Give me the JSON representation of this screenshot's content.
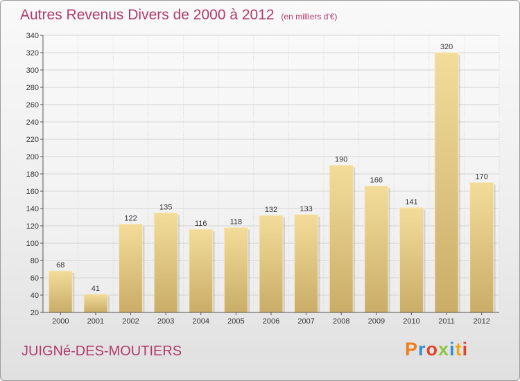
{
  "header": {
    "title": "Autres Revenus Divers de 2000 à 2012",
    "subtitle": "(en milliers d'€)"
  },
  "footer": {
    "place": "JUIGNé-DES-MOUTIERS",
    "logo_text": "Proxiti"
  },
  "colors": {
    "title": "#b03a6a",
    "bar_light": "#f3dc9a",
    "bar_dark": "#c9ad68",
    "logo_letters": [
      "#f07d1a",
      "#2f8fd0",
      "#e0452b",
      "#8cc63f",
      "#2f8fd0",
      "#f0a81a",
      "#e0452b"
    ]
  },
  "chart_data": {
    "type": "bar",
    "title": "Autres Revenus Divers de 2000 à 2012",
    "subtitle": "(en milliers d'€)",
    "categories": [
      "2000",
      "2001",
      "2002",
      "2003",
      "2004",
      "2005",
      "2006",
      "2007",
      "2008",
      "2009",
      "2010",
      "2011",
      "2012"
    ],
    "values": [
      68,
      41,
      122,
      135,
      116,
      118,
      132,
      133,
      190,
      166,
      141,
      320,
      170
    ],
    "ylim": [
      20,
      340
    ],
    "yticks": [
      20,
      40,
      60,
      80,
      100,
      120,
      140,
      160,
      180,
      200,
      220,
      240,
      260,
      280,
      300,
      320,
      340
    ],
    "grid": true,
    "data_labels": true
  }
}
